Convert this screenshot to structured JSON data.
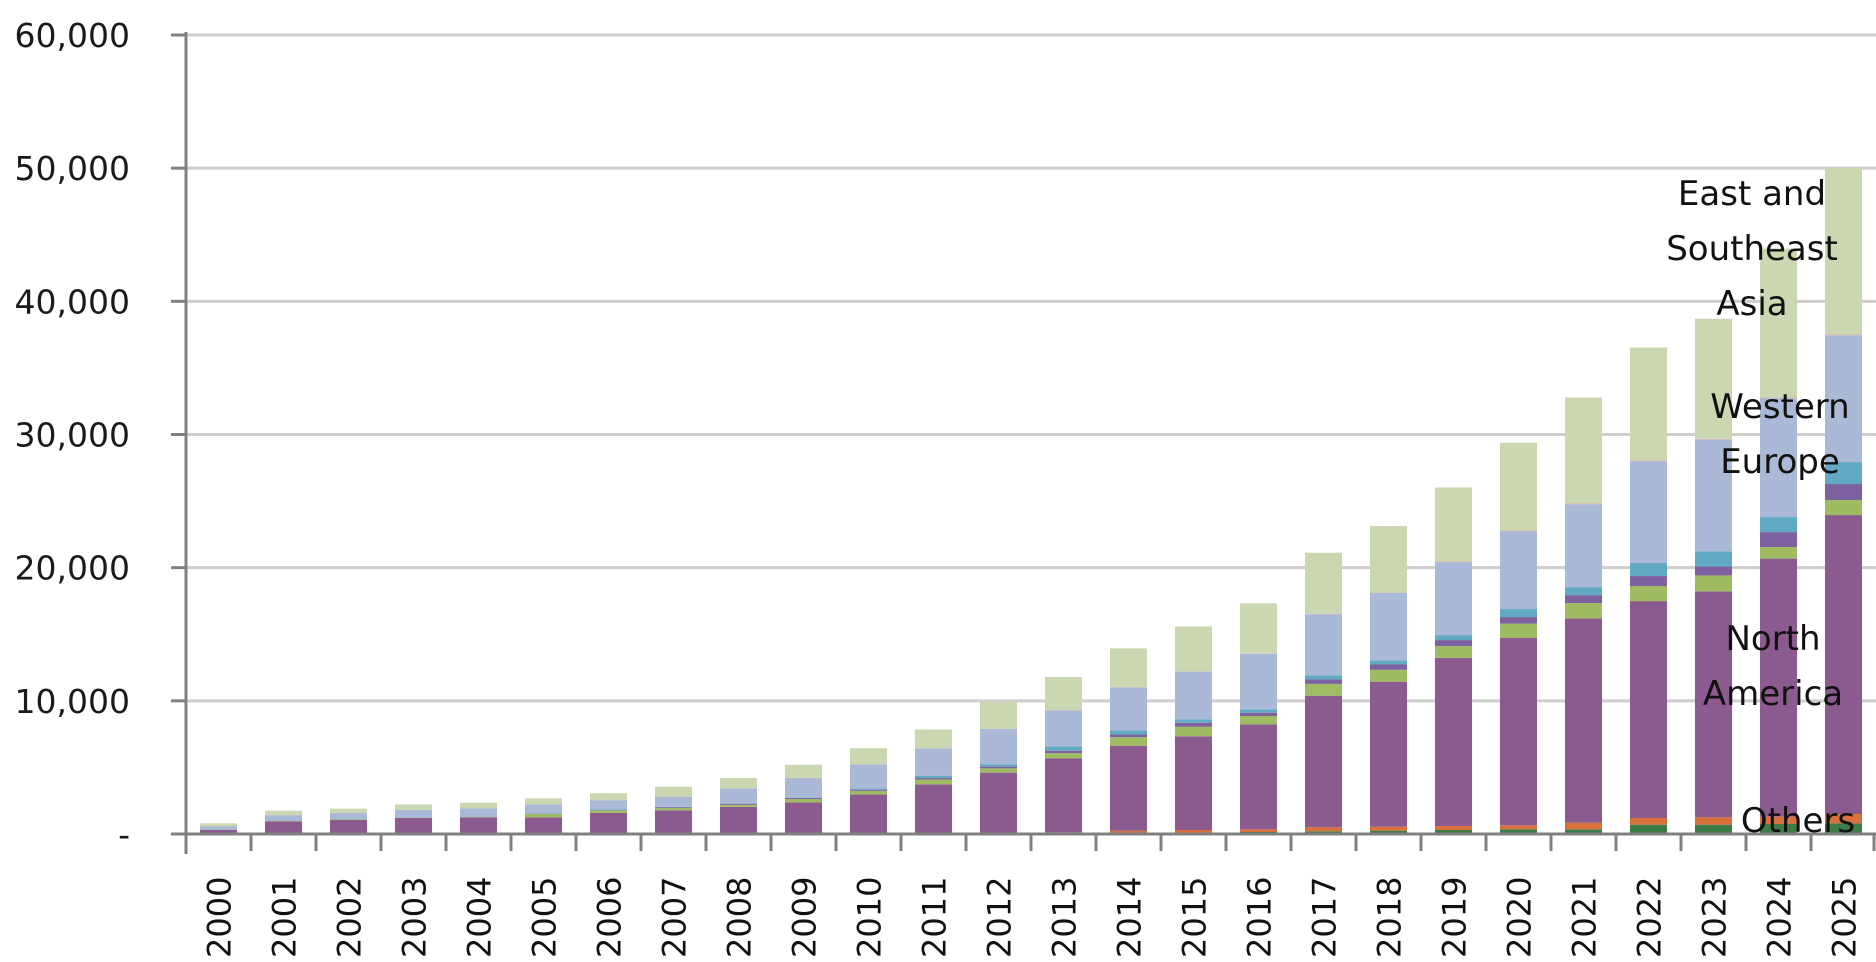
{
  "chart_data": {
    "type": "bar",
    "stacked": true,
    "title": "",
    "xlabel": "",
    "ylabel": "",
    "ylim": [
      0,
      60000
    ],
    "yticks": [
      0,
      10000,
      20000,
      30000,
      40000,
      50000,
      60000
    ],
    "ytick_labels": [
      "-",
      "10,000",
      "20,000",
      "30,000",
      "40,000",
      "50,000",
      "60,000"
    ],
    "grid": "horizontal",
    "legend": "none",
    "categories": [
      "2000",
      "2001",
      "2002",
      "2003",
      "2004",
      "2005",
      "2006",
      "2007",
      "2008",
      "2009",
      "2010",
      "2011",
      "2012",
      "2013",
      "2014",
      "2015",
      "2016",
      "2017",
      "2018",
      "2019",
      "2020",
      "2021",
      "2022",
      "2023",
      "2024",
      "2025"
    ],
    "series": [
      {
        "id": "others_a",
        "color": "#3D7B47",
        "values": [
          0,
          0,
          0,
          0,
          0,
          0,
          0,
          0,
          0,
          0,
          0,
          0,
          0,
          0,
          0,
          100,
          150,
          200,
          250,
          300,
          350,
          350,
          700,
          700,
          750,
          800
        ]
      },
      {
        "id": "others_b",
        "color": "#D9713C",
        "values": [
          0,
          0,
          0,
          0,
          0,
          0,
          0,
          0,
          0,
          0,
          0,
          30,
          60,
          120,
          250,
          200,
          200,
          300,
          300,
          300,
          300,
          500,
          500,
          550,
          550,
          700
        ]
      },
      {
        "id": "north_america",
        "color": "#8B5A8F",
        "values": [
          300,
          950,
          1050,
          1200,
          1250,
          1250,
          1580,
          1780,
          2040,
          2380,
          2960,
          3700,
          4550,
          5570,
          6380,
          7040,
          7880,
          9880,
          10890,
          12630,
          14090,
          15330,
          16290,
          16970,
          19380,
          22450
        ]
      },
      {
        "id": "region_d",
        "color": "#9FBC63",
        "values": [
          20,
          30,
          40,
          30,
          30,
          250,
          200,
          170,
          150,
          250,
          280,
          360,
          320,
          380,
          640,
          710,
          630,
          890,
          890,
          880,
          1060,
          1160,
          1130,
          1200,
          870,
          1130
        ]
      },
      {
        "id": "region_e",
        "color": "#7E629F",
        "values": [
          10,
          10,
          10,
          10,
          10,
          20,
          30,
          60,
          90,
          90,
          90,
          110,
          130,
          180,
          200,
          300,
          250,
          330,
          400,
          450,
          490,
          600,
          750,
          680,
          1120,
          1200
        ]
      },
      {
        "id": "region_f",
        "color": "#62AAC4",
        "values": [
          10,
          20,
          20,
          20,
          20,
          20,
          30,
          30,
          30,
          40,
          80,
          160,
          160,
          330,
          300,
          260,
          260,
          300,
          310,
          380,
          600,
          600,
          980,
          1130,
          1130,
          1650
        ]
      },
      {
        "id": "western_europe",
        "color": "#AAB9D5",
        "values": [
          250,
          400,
          450,
          540,
          620,
          690,
          700,
          750,
          1120,
          1440,
          1820,
          2070,
          2670,
          2710,
          3240,
          3590,
          4170,
          4610,
          5060,
          5480,
          5860,
          6230,
          7650,
          8400,
          8930,
          9530
        ]
      },
      {
        "id": "region_h",
        "color": "#E4B1B0",
        "values": [
          10,
          10,
          10,
          10,
          10,
          10,
          10,
          10,
          10,
          10,
          10,
          10,
          10,
          20,
          20,
          20,
          30,
          30,
          30,
          40,
          40,
          50,
          50,
          50,
          50,
          50
        ]
      },
      {
        "id": "east_southeast_asia",
        "color": "#CAD7B0",
        "values": [
          200,
          330,
          320,
          410,
          410,
          440,
          510,
          750,
          760,
          990,
          1200,
          1410,
          2020,
          2480,
          2910,
          3370,
          3750,
          4580,
          4990,
          5560,
          6600,
          7960,
          8490,
          9010,
          11190,
          12500
        ]
      }
    ],
    "annotations": [
      {
        "id": "asia",
        "lines": [
          "East and",
          "Southeast",
          "Asia"
        ]
      },
      {
        "id": "europe",
        "lines": [
          "Western",
          "Europe"
        ]
      },
      {
        "id": "america",
        "lines": [
          "North",
          "America"
        ]
      },
      {
        "id": "others",
        "lines": [
          "Others"
        ]
      }
    ],
    "colors": {
      "axis": "#808080",
      "grid": "#D0CECA",
      "text": "#111111"
    }
  }
}
